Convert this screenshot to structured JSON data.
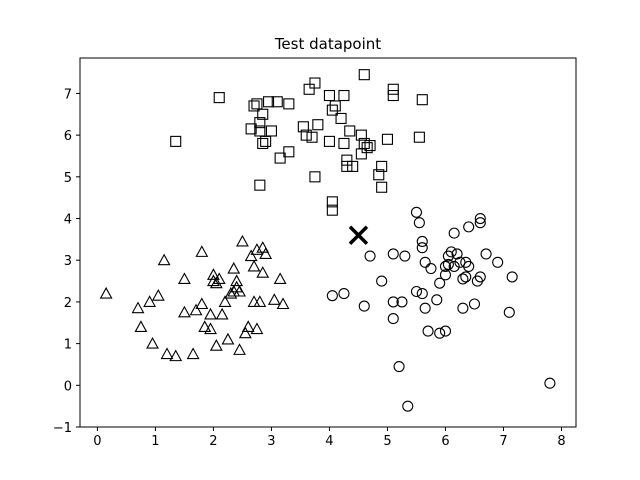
{
  "chart_data": {
    "type": "scatter",
    "title": "Test datapoint",
    "xlabel": "",
    "ylabel": "",
    "xlim": [
      -0.3,
      8.25
    ],
    "ylim": [
      -1.0,
      7.85
    ],
    "xticks": [
      0,
      1,
      2,
      3,
      4,
      5,
      6,
      7,
      8
    ],
    "yticks": [
      -1,
      0,
      1,
      2,
      3,
      4,
      5,
      6,
      7
    ],
    "grid": false,
    "legend": "none",
    "series": [
      {
        "marker": "square",
        "color": "#000000",
        "points": [
          [
            2.1,
            6.9
          ],
          [
            2.75,
            6.75
          ],
          [
            2.7,
            6.7
          ],
          [
            2.95,
            6.8
          ],
          [
            3.1,
            6.8
          ],
          [
            3.3,
            6.75
          ],
          [
            3.65,
            7.1
          ],
          [
            3.75,
            7.25
          ],
          [
            4.0,
            6.95
          ],
          [
            4.25,
            6.95
          ],
          [
            4.6,
            7.45
          ],
          [
            5.1,
            7.1
          ],
          [
            5.1,
            6.95
          ],
          [
            5.6,
            6.85
          ],
          [
            2.85,
            6.5
          ],
          [
            2.8,
            6.3
          ],
          [
            2.8,
            6.1
          ],
          [
            2.65,
            6.15
          ],
          [
            3.0,
            6.1
          ],
          [
            2.9,
            5.85
          ],
          [
            2.85,
            5.8
          ],
          [
            1.35,
            5.85
          ],
          [
            3.55,
            6.2
          ],
          [
            3.6,
            6.0
          ],
          [
            3.7,
            5.95
          ],
          [
            3.8,
            6.25
          ],
          [
            4.05,
            6.6
          ],
          [
            4.1,
            6.7
          ],
          [
            4.2,
            6.4
          ],
          [
            4.35,
            6.1
          ],
          [
            4.0,
            5.85
          ],
          [
            4.25,
            5.8
          ],
          [
            4.55,
            6.0
          ],
          [
            4.6,
            5.8
          ],
          [
            4.65,
            5.7
          ],
          [
            4.7,
            5.75
          ],
          [
            4.55,
            5.55
          ],
          [
            5.0,
            5.9
          ],
          [
            5.55,
            5.95
          ],
          [
            3.3,
            5.6
          ],
          [
            3.15,
            5.45
          ],
          [
            4.3,
            5.4
          ],
          [
            4.3,
            5.25
          ],
          [
            4.4,
            5.25
          ],
          [
            4.9,
            5.25
          ],
          [
            4.85,
            5.05
          ],
          [
            3.75,
            5.0
          ],
          [
            4.9,
            4.75
          ],
          [
            2.8,
            4.8
          ],
          [
            4.05,
            4.4
          ],
          [
            4.05,
            4.2
          ]
        ]
      },
      {
        "marker": "triangle",
        "color": "#000000",
        "points": [
          [
            0.15,
            2.2
          ],
          [
            0.7,
            1.85
          ],
          [
            0.75,
            1.4
          ],
          [
            0.9,
            2.0
          ],
          [
            0.95,
            1.0
          ],
          [
            1.05,
            2.15
          ],
          [
            1.15,
            3.0
          ],
          [
            1.2,
            0.75
          ],
          [
            1.35,
            0.7
          ],
          [
            1.5,
            2.55
          ],
          [
            1.5,
            1.75
          ],
          [
            1.65,
            0.75
          ],
          [
            1.7,
            1.8
          ],
          [
            1.8,
            3.2
          ],
          [
            1.8,
            1.95
          ],
          [
            1.85,
            1.4
          ],
          [
            1.95,
            1.35
          ],
          [
            1.95,
            1.7
          ],
          [
            2.0,
            2.65
          ],
          [
            2.0,
            2.5
          ],
          [
            2.05,
            2.45
          ],
          [
            2.05,
            0.95
          ],
          [
            2.1,
            2.55
          ],
          [
            2.15,
            1.7
          ],
          [
            2.2,
            2.0
          ],
          [
            2.25,
            1.1
          ],
          [
            2.3,
            2.2
          ],
          [
            2.35,
            2.25
          ],
          [
            2.35,
            2.8
          ],
          [
            2.4,
            2.5
          ],
          [
            2.4,
            2.35
          ],
          [
            2.45,
            0.85
          ],
          [
            2.45,
            2.25
          ],
          [
            2.5,
            3.45
          ],
          [
            2.55,
            1.25
          ],
          [
            2.6,
            1.4
          ],
          [
            2.65,
            3.1
          ],
          [
            2.7,
            2.85
          ],
          [
            2.75,
            3.25
          ],
          [
            2.7,
            2.0
          ],
          [
            2.75,
            1.35
          ],
          [
            2.8,
            2.0
          ],
          [
            2.85,
            2.7
          ],
          [
            2.85,
            3.3
          ],
          [
            2.9,
            3.15
          ],
          [
            3.05,
            2.05
          ],
          [
            3.15,
            2.55
          ],
          [
            3.2,
            1.95
          ]
        ]
      },
      {
        "marker": "circle",
        "color": "#000000",
        "points": [
          [
            4.05,
            2.15
          ],
          [
            4.25,
            2.2
          ],
          [
            4.6,
            1.9
          ],
          [
            4.7,
            3.1
          ],
          [
            4.9,
            2.5
          ],
          [
            5.1,
            2.0
          ],
          [
            5.1,
            1.6
          ],
          [
            5.1,
            3.15
          ],
          [
            5.2,
            0.45
          ],
          [
            5.25,
            2.0
          ],
          [
            5.3,
            3.1
          ],
          [
            5.35,
            -0.5
          ],
          [
            5.5,
            4.15
          ],
          [
            5.5,
            2.25
          ],
          [
            5.55,
            3.9
          ],
          [
            5.6,
            3.45
          ],
          [
            5.6,
            3.3
          ],
          [
            5.6,
            2.2
          ],
          [
            5.65,
            1.85
          ],
          [
            5.65,
            2.95
          ],
          [
            5.7,
            1.3
          ],
          [
            5.75,
            2.8
          ],
          [
            5.85,
            2.05
          ],
          [
            5.9,
            2.45
          ],
          [
            5.9,
            1.25
          ],
          [
            6.0,
            2.65
          ],
          [
            6.0,
            1.3
          ],
          [
            6.0,
            2.85
          ],
          [
            6.05,
            3.1
          ],
          [
            6.05,
            2.9
          ],
          [
            6.1,
            3.2
          ],
          [
            6.15,
            2.85
          ],
          [
            6.15,
            3.65
          ],
          [
            6.2,
            3.15
          ],
          [
            6.25,
            2.95
          ],
          [
            6.3,
            2.55
          ],
          [
            6.3,
            1.85
          ],
          [
            6.35,
            2.6
          ],
          [
            6.35,
            2.95
          ],
          [
            6.4,
            3.8
          ],
          [
            6.4,
            2.85
          ],
          [
            6.5,
            1.95
          ],
          [
            6.55,
            2.5
          ],
          [
            6.6,
            4.0
          ],
          [
            6.6,
            3.9
          ],
          [
            6.6,
            2.6
          ],
          [
            6.7,
            3.15
          ],
          [
            6.9,
            2.95
          ],
          [
            7.1,
            1.75
          ],
          [
            7.15,
            2.6
          ],
          [
            7.8,
            0.05
          ]
        ]
      }
    ],
    "test_point": {
      "x": 4.5,
      "y": 3.6,
      "marker": "x",
      "color": "#000000"
    }
  }
}
